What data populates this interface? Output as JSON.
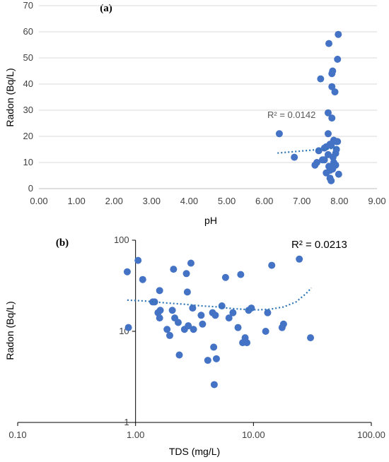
{
  "colors": {
    "point": "#4472C4",
    "trend": "#2E75B6",
    "grid": "#d9d9d9",
    "axis": "#000000"
  },
  "chart_data": [
    {
      "type": "scatter",
      "panel_label": "(a)",
      "xlabel": "pH",
      "ylabel": "Radon (Bq/L)",
      "xlim": [
        0,
        9
      ],
      "ylim": [
        0,
        70
      ],
      "x_ticks": [
        "0.00",
        "1.00",
        "2.00",
        "3.00",
        "4.00",
        "5.00",
        "6.00",
        "7.00",
        "8.00",
        "9.00"
      ],
      "y_ticks": [
        "0",
        "10",
        "20",
        "30",
        "40",
        "50",
        "60",
        "70"
      ],
      "grid": "y-major",
      "r2_label": "R² = 0.0142",
      "trendline": {
        "type": "linear",
        "x": [
          6.35,
          7.98
        ],
        "y": [
          13.6,
          15.6
        ]
      },
      "series": [
        {
          "x": [
            6.4,
            6.8,
            7.35,
            7.4,
            7.45,
            7.5,
            7.55,
            7.6,
            7.6,
            7.65,
            7.65,
            7.7,
            7.7,
            7.7,
            7.72,
            7.72,
            7.75,
            7.75,
            7.75,
            7.78,
            7.78,
            7.8,
            7.8,
            7.8,
            7.82,
            7.82,
            7.83,
            7.85,
            7.85,
            7.88,
            7.9,
            7.9,
            7.92,
            7.92,
            7.95,
            7.95,
            7.97,
            7.98
          ],
          "y": [
            21,
            12,
            9,
            10,
            14.5,
            42,
            11,
            11,
            15.5,
            16,
            6,
            21,
            29,
            13,
            8.5,
            55.5,
            17,
            7,
            4,
            16.5,
            3,
            39,
            44,
            27,
            7.5,
            45,
            12,
            10,
            18.5,
            37,
            13.5,
            9,
            15,
            18,
            18,
            49.5,
            59,
            5.5
          ]
        }
      ]
    },
    {
      "type": "scatter",
      "panel_label": "(b)",
      "xlabel": "TDS (mg/L)",
      "ylabel": "Radon (Bq/L)",
      "x_scale": "log",
      "y_scale": "log",
      "xlim": [
        0.1,
        100
      ],
      "ylim": [
        1,
        100
      ],
      "x_ticks": [
        "0.10",
        "1.00",
        "10.00",
        "100.00"
      ],
      "y_ticks": [
        "1",
        "10",
        "100"
      ],
      "grid": "none",
      "r2_label": "R² = 0.0213",
      "trendline": {
        "type": "polynomial",
        "x": [
          0.85,
          1.2,
          1.8,
          2.6,
          3.6,
          5,
          6.5,
          8.5,
          11,
          14,
          18,
          23,
          28,
          31
        ],
        "y": [
          22,
          21.5,
          20.5,
          19.8,
          19,
          18.5,
          17.8,
          17.4,
          17.2,
          17.5,
          18.5,
          21,
          26,
          30
        ]
      },
      "series": [
        {
          "x": [
            0.85,
            0.87,
            1.05,
            1.15,
            1.4,
            1.45,
            1.55,
            1.6,
            1.6,
            1.62,
            1.85,
            1.95,
            2.05,
            2.1,
            2.15,
            2.3,
            2.35,
            2.6,
            2.7,
            2.75,
            2.8,
            2.95,
            3.05,
            3.1,
            3.6,
            3.7,
            4.1,
            4.5,
            4.6,
            4.65,
            4.75,
            4.85,
            5.4,
            5.8,
            6.2,
            6.7,
            7.4,
            7.8,
            8.1,
            8.5,
            8.8,
            9.1,
            9.6,
            12.7,
            13.2,
            14.3,
            17.5,
            18,
            24.5,
            30.5
          ],
          "y": [
            45,
            11,
            60,
            37,
            21,
            21,
            16,
            28,
            14,
            17,
            10.5,
            9,
            17,
            48,
            14,
            12.5,
            5.5,
            10.5,
            43,
            27,
            11.5,
            56,
            18,
            10.5,
            15,
            12,
            4.8,
            16,
            6.7,
            2.6,
            15,
            5,
            19,
            39,
            14,
            16,
            11,
            42,
            7.5,
            8.5,
            7.5,
            17,
            18,
            10,
            16,
            53,
            11,
            12,
            62,
            8.5
          ]
        }
      ]
    }
  ]
}
